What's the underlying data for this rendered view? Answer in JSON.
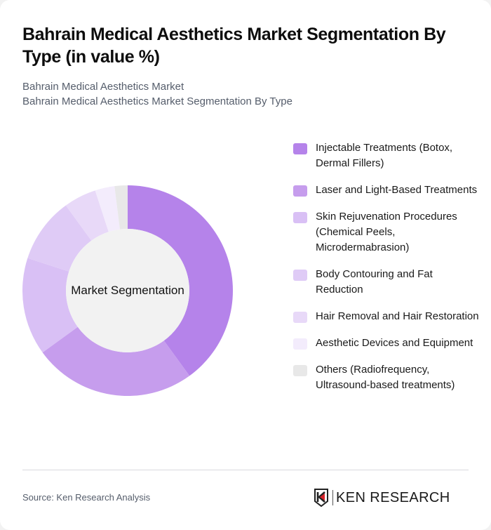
{
  "header": {
    "title": "Bahrain Medical Aesthetics Market Segmentation By Type (in value %)",
    "subtitle_line1": "Bahrain Medical Aesthetics Market",
    "subtitle_line2": "Bahrain Medical Aesthetics Market Segmentation By Type"
  },
  "chart": {
    "center_label": "Market Segmentation"
  },
  "legend": {
    "items": [
      {
        "label": "Injectable Treatments (Botox, Dermal Fillers)",
        "color": "#B583EA"
      },
      {
        "label": "Laser and Light-Based Treatments",
        "color": "#C69DED"
      },
      {
        "label": "Skin Rejuvenation Procedures (Chemical Peels, Microdermabrasion)",
        "color": "#D9C0F5"
      },
      {
        "label": "Body Contouring and Fat Reduction",
        "color": "#DFCBF6"
      },
      {
        "label": "Hair Removal and Hair Restoration",
        "color": "#E8D9F8"
      },
      {
        "label": "Aesthetic Devices and Equipment",
        "color": "#F3ECFC"
      },
      {
        "label": "Others (Radiofrequency, Ultrasound-based treatments)",
        "color": "#E8E8E8"
      }
    ]
  },
  "footer": {
    "source": "Source: Ken Research Analysis",
    "logo_text": "KEN RESEARCH"
  },
  "chart_data": {
    "type": "pie",
    "title": "Bahrain Medical Aesthetics Market Segmentation By Type (in value %)",
    "subtitle": "Bahrain Medical Aesthetics Market Segmentation By Type",
    "center_label": "Market Segmentation",
    "categories": [
      "Injectable Treatments (Botox, Dermal Fillers)",
      "Laser and Light-Based Treatments",
      "Skin Rejuvenation Procedures (Chemical Peels, Microdermabrasion)",
      "Body Contouring and Fat Reduction",
      "Hair Removal and Hair Restoration",
      "Aesthetic Devices and Equipment",
      "Others (Radiofrequency, Ultrasound-based treatments)"
    ],
    "values": [
      40,
      25,
      15,
      10,
      5,
      3,
      2
    ],
    "colors": [
      "#B583EA",
      "#C69DED",
      "#D9C0F5",
      "#DFCBF6",
      "#E8D9F8",
      "#F3ECFC",
      "#E8E8E8"
    ],
    "donut": true,
    "legend_position": "right",
    "unit": "%"
  }
}
